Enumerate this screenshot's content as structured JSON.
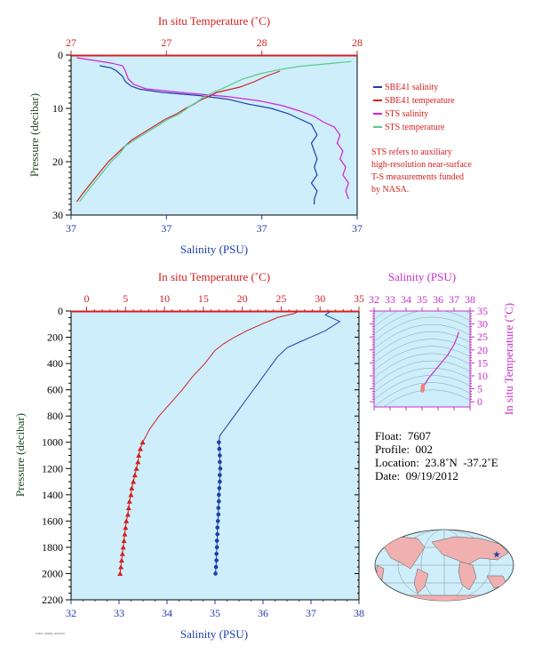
{
  "chart_data": [
    {
      "type": "line",
      "panel": "top",
      "top_axis": {
        "label": "In situ Temperature (˚C)",
        "ticks": [
          "27",
          "27",
          "28",
          "28"
        ],
        "color": "#d42020"
      },
      "bottom_axis": {
        "label": "Salinity (PSU)",
        "ticks": [
          "37",
          "37",
          "37",
          "37"
        ],
        "color": "#1d3fa8"
      },
      "left_axis": {
        "label": "Pressure (decibar)",
        "ticks": [
          "0",
          "10",
          "20",
          "30"
        ],
        "ylim": [
          0,
          30
        ]
      },
      "legend": [
        {
          "name": "SBE41 salinity",
          "color": "#1d3fa8"
        },
        {
          "name": "SBE41 temperature",
          "color": "#d42020"
        },
        {
          "name": "STS salinity",
          "color": "#d41fd4"
        },
        {
          "name": "STS temperature",
          "color": "#59c98a"
        }
      ],
      "note": [
        "STS refers to auxiliary",
        "high-resolution near-surface",
        "T-S measurements funded",
        "by NASA."
      ],
      "xlim_fraction": [
        0,
        1
      ],
      "series": [
        {
          "name": "SBE41 salinity",
          "x": [
            0.1,
            0.14,
            0.16,
            0.18,
            0.19,
            0.21,
            0.24,
            0.32,
            0.45,
            0.55,
            0.62,
            0.7,
            0.76,
            0.8,
            0.84,
            0.85,
            0.86,
            0.84,
            0.85,
            0.86,
            0.85,
            0.86,
            0.84,
            0.86,
            0.85,
            0.85
          ],
          "y": [
            2.0,
            2.4,
            3.0,
            4.0,
            5.0,
            5.8,
            6.4,
            7.0,
            7.6,
            8.3,
            9.2,
            10.0,
            11.0,
            12.0,
            13.0,
            14.0,
            15.0,
            16.5,
            18.0,
            19.5,
            21.0,
            22.5,
            24.0,
            25.5,
            27.0,
            28.0
          ]
        },
        {
          "name": "SBE41 temperature",
          "x": [
            0.73,
            0.68,
            0.64,
            0.59,
            0.55,
            0.51,
            0.48,
            0.45,
            0.43,
            0.4,
            0.37,
            0.33,
            0.3,
            0.27,
            0.24,
            0.21,
            0.19,
            0.16,
            0.13,
            0.1,
            0.07,
            0.04,
            0.02
          ],
          "y": [
            3.0,
            4.0,
            5.0,
            6.0,
            6.5,
            7.0,
            7.8,
            8.5,
            9.2,
            10.0,
            11.0,
            12.0,
            13.0,
            14.0,
            15.0,
            16.0,
            17.0,
            18.5,
            20.0,
            22.0,
            24.0,
            26.0,
            27.5
          ]
        },
        {
          "name": "STS salinity",
          "x": [
            0.02,
            0.08,
            0.14,
            0.18,
            0.19,
            0.2,
            0.22,
            0.26,
            0.38,
            0.55,
            0.66,
            0.74,
            0.8,
            0.85,
            0.88,
            0.92,
            0.94,
            0.93,
            0.95,
            0.94,
            0.96,
            0.95,
            0.97,
            0.96,
            0.97
          ],
          "y": [
            0.5,
            1.0,
            1.5,
            2.0,
            3.0,
            4.5,
            5.5,
            6.3,
            7.0,
            7.8,
            8.6,
            9.5,
            10.5,
            11.5,
            12.5,
            13.5,
            15.0,
            16.5,
            18.0,
            19.5,
            21.0,
            22.5,
            24.0,
            25.5,
            27.0
          ]
        },
        {
          "name": "STS temperature",
          "x": [
            0.98,
            0.9,
            0.8,
            0.72,
            0.66,
            0.6,
            0.56,
            0.52,
            0.49,
            0.46,
            0.44,
            0.41,
            0.38,
            0.34,
            0.31,
            0.28,
            0.25,
            0.22,
            0.19,
            0.17,
            0.14,
            0.11,
            0.08,
            0.05,
            0.03
          ],
          "y": [
            1.2,
            1.6,
            2.1,
            2.8,
            3.5,
            4.5,
            5.5,
            6.5,
            7.2,
            8.0,
            8.8,
            9.8,
            11.0,
            12.0,
            13.0,
            14.0,
            15.0,
            16.0,
            17.0,
            18.5,
            20.0,
            22.0,
            24.0,
            26.0,
            27.5
          ]
        }
      ]
    },
    {
      "type": "line",
      "panel": "bottom",
      "top_axis": {
        "label": "In situ Temperature (˚C)",
        "ticks": [
          "0",
          "5",
          "10",
          "15",
          "20",
          "25",
          "30",
          "35"
        ],
        "xlim": [
          -2,
          35
        ],
        "color": "#d42020"
      },
      "bottom_axis": {
        "label": "Salinity (PSU)",
        "ticks": [
          "32",
          "33",
          "34",
          "35",
          "36",
          "37",
          "38"
        ],
        "xlim": [
          32,
          38
        ],
        "color": "#1d3fa8"
      },
      "left_axis": {
        "label": "Pressure (decibar)",
        "ticks": [
          "0",
          "200",
          "400",
          "600",
          "800",
          "1000",
          "1200",
          "1400",
          "1600",
          "1800",
          "2000",
          "2200"
        ],
        "ylim": [
          0,
          2200
        ]
      },
      "series": [
        {
          "name": "Temperature",
          "axis": "top",
          "color": "#d42020",
          "values": [
            [
              27.2,
              5
            ],
            [
              26.6,
              20
            ],
            [
              24.5,
              50
            ],
            [
              22.5,
              100
            ],
            [
              20.6,
              150
            ],
            [
              19.0,
              200
            ],
            [
              17.6,
              250
            ],
            [
              16.5,
              300
            ],
            [
              15.2,
              400
            ],
            [
              13.6,
              500
            ],
            [
              12.3,
              600
            ],
            [
              10.8,
              700
            ],
            [
              9.3,
              800
            ],
            [
              8.1,
              900
            ],
            [
              7.2,
              1000
            ]
          ]
        },
        {
          "name": "Temperature (bottle)",
          "axis": "top",
          "color": "#d42020",
          "marker": "triangle",
          "values": [
            [
              7.2,
              1000
            ],
            [
              6.9,
              1050
            ],
            [
              6.7,
              1100
            ],
            [
              6.6,
              1150
            ],
            [
              6.4,
              1200
            ],
            [
              6.2,
              1250
            ],
            [
              6.0,
              1300
            ],
            [
              5.8,
              1350
            ],
            [
              5.7,
              1400
            ],
            [
              5.5,
              1450
            ],
            [
              5.4,
              1500
            ],
            [
              5.3,
              1550
            ],
            [
              5.1,
              1600
            ],
            [
              5.0,
              1650
            ],
            [
              4.9,
              1700
            ],
            [
              4.8,
              1750
            ],
            [
              4.7,
              1800
            ],
            [
              4.6,
              1850
            ],
            [
              4.5,
              1900
            ],
            [
              4.4,
              1950
            ],
            [
              4.3,
              2000
            ]
          ]
        },
        {
          "name": "Salinity",
          "axis": "bottom",
          "color": "#1d3fa8",
          "values": [
            [
              37.4,
              5
            ],
            [
              37.3,
              30
            ],
            [
              37.6,
              80
            ],
            [
              37.3,
              150
            ],
            [
              36.8,
              230
            ],
            [
              36.5,
              280
            ],
            [
              36.3,
              350
            ],
            [
              36.1,
              450
            ],
            [
              35.9,
              550
            ],
            [
              35.7,
              650
            ],
            [
              35.5,
              750
            ],
            [
              35.3,
              850
            ],
            [
              35.1,
              950
            ],
            [
              35.08,
              1000
            ]
          ]
        },
        {
          "name": "Salinity (bottle)",
          "axis": "bottom",
          "color": "#1d3fa8",
          "marker": "circle",
          "values": [
            [
              35.08,
              1000
            ],
            [
              35.09,
              1050
            ],
            [
              35.1,
              1100
            ],
            [
              35.1,
              1150
            ],
            [
              35.11,
              1200
            ],
            [
              35.1,
              1250
            ],
            [
              35.1,
              1300
            ],
            [
              35.09,
              1350
            ],
            [
              35.08,
              1400
            ],
            [
              35.08,
              1450
            ],
            [
              35.07,
              1500
            ],
            [
              35.07,
              1550
            ],
            [
              35.06,
              1600
            ],
            [
              35.05,
              1650
            ],
            [
              35.05,
              1700
            ],
            [
              35.04,
              1750
            ],
            [
              35.04,
              1800
            ],
            [
              35.03,
              1850
            ],
            [
              35.03,
              1900
            ],
            [
              35.02,
              1950
            ],
            [
              35.01,
              2000
            ]
          ]
        }
      ]
    },
    {
      "type": "scatter",
      "panel": "ts-diagram",
      "top_axis": {
        "label": "Salinity (PSU)",
        "ticks": [
          "32",
          "33",
          "34",
          "35",
          "36",
          "37",
          "38"
        ],
        "xlim": [
          32,
          38
        ],
        "color": "#c72fc7"
      },
      "right_axis": {
        "label": "In situ Temperature (˚C)",
        "ticks": [
          "0",
          "5",
          "10",
          "15",
          "20",
          "25",
          "30",
          "35"
        ],
        "ylim": [
          -2,
          35
        ],
        "color": "#c72fc7"
      },
      "series": [
        {
          "name": "T-S",
          "color": "#c72fc7",
          "values": [
            [
              37.3,
              27
            ],
            [
              37.2,
              25
            ],
            [
              37.0,
              22
            ],
            [
              36.6,
              18
            ],
            [
              36.2,
              15
            ],
            [
              35.8,
              12
            ],
            [
              35.4,
              9
            ],
            [
              35.2,
              7
            ],
            [
              35.1,
              6
            ],
            [
              35.08,
              5
            ]
          ]
        },
        {
          "name": "T-S deep",
          "color": "#f08080",
          "marker": "dot",
          "values": [
            [
              35.06,
              6.2
            ],
            [
              35.05,
              5.8
            ],
            [
              35.05,
              5.4
            ],
            [
              35.04,
              5.0
            ],
            [
              35.04,
              4.7
            ],
            [
              35.03,
              4.5
            ],
            [
              35.02,
              4.3
            ]
          ]
        }
      ]
    }
  ],
  "float_info": {
    "float_label": "Float:",
    "float_value": "7607",
    "profile_label": "Profile:",
    "profile_value": "002",
    "location_label": "Location:",
    "location_value": "23.8˚N  -37.2˚E",
    "date_label": "Date:",
    "date_value": "09/19/2012"
  },
  "colors": {
    "plot_bg": "#cdeefa",
    "temperature": "#d42020",
    "salinity": "#1d3fa8",
    "sts_salinity": "#d41fd4",
    "sts_temperature": "#59c98a",
    "ts_axis": "#c72fc7",
    "pressure_label": "#1e4a1e"
  },
  "map": {
    "marker": "star",
    "marker_color": "#1d3fa8"
  },
  "footer_code": "F7607_P002N_NXXXXX"
}
